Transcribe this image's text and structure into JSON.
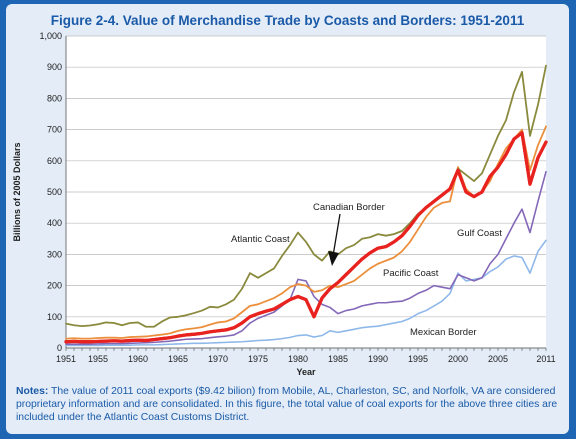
{
  "title": "Figure 2-4. Value of Merchandise Trade by Coasts and Borders: 1951-2011",
  "notes": {
    "label": "Notes:",
    "text": "The value of 2011 coal exports ($9.42 bilion) from Mobile, AL, Charleston, SC, and Norfolk, VA are considered proprietary information and are consolidated. In this figure, the total value of coal exports for the above three cities are included under the Atlantic Coast Customs District."
  },
  "colors": {
    "atlantic": "#8a8a3e",
    "canadian": "#e8231f",
    "pacific": "#ec8f3c",
    "gulf": "#8468b8",
    "mexican": "#8fb8ea"
  },
  "chart_data": {
    "type": "line",
    "title": "Figure 2-4. Value of Merchandise Trade by Coasts and Borders: 1951-2011",
    "xlabel": "Year",
    "ylabel": "Billions of 2005 Dollars",
    "xlim": [
      1951,
      2011
    ],
    "ylim": [
      0,
      1000
    ],
    "x_ticks": [
      "1951",
      "1955",
      "1960",
      "1965",
      "1970",
      "1975",
      "1980",
      "1985",
      "1990",
      "1995",
      "2000",
      "2005",
      "2011"
    ],
    "y_ticks": [
      "0",
      "100",
      "200",
      "300",
      "400",
      "500",
      "600",
      "700",
      "800",
      "900",
      "1,000"
    ],
    "grid": true,
    "x": [
      1951,
      1952,
      1953,
      1954,
      1955,
      1956,
      1957,
      1958,
      1959,
      1960,
      1961,
      1962,
      1963,
      1964,
      1965,
      1966,
      1967,
      1968,
      1969,
      1970,
      1971,
      1972,
      1973,
      1974,
      1975,
      1976,
      1977,
      1978,
      1979,
      1980,
      1981,
      1982,
      1983,
      1984,
      1985,
      1986,
      1987,
      1988,
      1989,
      1990,
      1991,
      1992,
      1993,
      1994,
      1995,
      1996,
      1997,
      1998,
      1999,
      2000,
      2001,
      2002,
      2003,
      2004,
      2005,
      2006,
      2007,
      2008,
      2009,
      2010,
      2011
    ],
    "series": [
      {
        "name": "Atlantic Coast",
        "color": "#8a8a3e",
        "width": 1.8,
        "values": [
          78,
          73,
          70,
          72,
          76,
          82,
          80,
          73,
          80,
          82,
          68,
          68,
          85,
          98,
          100,
          105,
          112,
          120,
          132,
          130,
          140,
          155,
          190,
          240,
          225,
          240,
          255,
          295,
          330,
          370,
          340,
          300,
          280,
          310,
          300,
          320,
          330,
          350,
          355,
          365,
          360,
          365,
          375,
          400,
          430,
          450,
          470,
          490,
          510,
          575,
          555,
          535,
          560,
          620,
          680,
          730,
          820,
          885,
          680,
          780,
          905
        ]
      },
      {
        "name": "Canadian Border",
        "color": "#e8231f",
        "width": 3.2,
        "values": [
          20,
          21,
          20,
          20,
          21,
          22,
          23,
          22,
          24,
          25,
          24,
          27,
          30,
          33,
          38,
          42,
          44,
          47,
          52,
          55,
          58,
          65,
          80,
          100,
          110,
          118,
          125,
          140,
          155,
          165,
          155,
          100,
          160,
          190,
          210,
          235,
          260,
          285,
          305,
          320,
          325,
          340,
          360,
          390,
          425,
          450,
          470,
          490,
          510,
          570,
          500,
          485,
          500,
          550,
          580,
          620,
          670,
          690,
          525,
          610,
          660
        ]
      },
      {
        "name": "Pacific Coast",
        "color": "#ec8f3c",
        "width": 1.8,
        "values": [
          30,
          31,
          30,
          30,
          32,
          33,
          33,
          32,
          35,
          36,
          37,
          40,
          43,
          47,
          55,
          60,
          63,
          67,
          75,
          82,
          85,
          95,
          115,
          135,
          140,
          150,
          160,
          175,
          195,
          205,
          200,
          180,
          185,
          200,
          195,
          205,
          215,
          235,
          255,
          270,
          280,
          290,
          310,
          340,
          380,
          420,
          450,
          465,
          470,
          580,
          510,
          485,
          500,
          535,
          590,
          640,
          670,
          700,
          570,
          650,
          710
        ]
      },
      {
        "name": "Gulf Coast",
        "color": "#8468b8",
        "width": 1.6,
        "values": [
          12,
          12,
          12,
          12,
          13,
          14,
          14,
          14,
          15,
          16,
          17,
          18,
          20,
          22,
          25,
          28,
          29,
          30,
          33,
          36,
          38,
          42,
          55,
          80,
          95,
          105,
          115,
          135,
          155,
          220,
          215,
          165,
          140,
          130,
          110,
          120,
          125,
          135,
          140,
          145,
          145,
          148,
          150,
          160,
          175,
          185,
          200,
          195,
          190,
          235,
          225,
          215,
          225,
          270,
          300,
          350,
          400,
          445,
          370,
          470,
          565
        ]
      },
      {
        "name": "Mexican Border",
        "color": "#8fb8ea",
        "width": 1.6,
        "values": [
          8,
          8,
          8,
          8,
          8,
          9,
          9,
          9,
          9,
          10,
          10,
          10,
          11,
          12,
          13,
          14,
          15,
          15,
          16,
          17,
          18,
          19,
          20,
          22,
          24,
          25,
          27,
          30,
          34,
          40,
          42,
          35,
          40,
          55,
          50,
          55,
          60,
          65,
          68,
          70,
          75,
          80,
          85,
          95,
          110,
          120,
          135,
          150,
          175,
          240,
          215,
          220,
          225,
          245,
          260,
          285,
          295,
          290,
          240,
          310,
          345
        ]
      }
    ],
    "annotations": [
      {
        "text": "Canadian Border",
        "points_to": "Canadian Border",
        "arrow": true
      },
      {
        "text": "Atlantic Coast"
      },
      {
        "text": "Pacific Coast"
      },
      {
        "text": "Gulf Coast"
      },
      {
        "text": "Mexican Border"
      }
    ]
  }
}
